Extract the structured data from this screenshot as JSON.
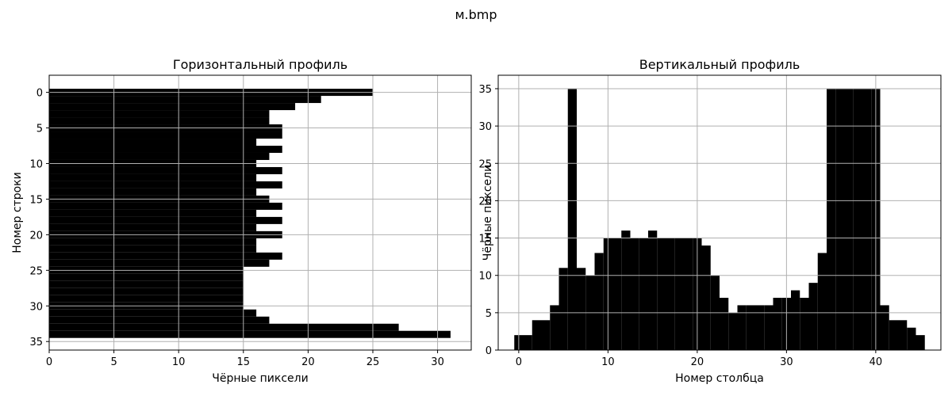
{
  "figure": {
    "suptitle": "м.bmp"
  },
  "chart_data": [
    {
      "type": "bar",
      "orientation": "horizontal",
      "title": "Горизонтальный профиль",
      "xlabel": "Чёрные пиксели",
      "ylabel": "Номер строки",
      "x_ticks": [
        0,
        5,
        10,
        15,
        20,
        25,
        30
      ],
      "y_ticks": [
        0,
        5,
        10,
        15,
        20,
        25,
        30,
        35
      ],
      "xlim": [
        0,
        32.6
      ],
      "ylim_inverted": [
        36.2,
        -2.4
      ],
      "grid": true,
      "bar_color": "#000000",
      "categories": [
        0,
        1,
        2,
        3,
        4,
        5,
        6,
        7,
        8,
        9,
        10,
        11,
        12,
        13,
        14,
        15,
        16,
        17,
        18,
        19,
        20,
        21,
        22,
        23,
        24,
        25,
        26,
        27,
        28,
        29,
        30,
        31,
        32,
        33,
        34
      ],
      "values": [
        25,
        21,
        19,
        17,
        17,
        18,
        18,
        16,
        18,
        17,
        16,
        18,
        16,
        18,
        16,
        17,
        18,
        16,
        18,
        16,
        18,
        16,
        16,
        18,
        17,
        15,
        15,
        15,
        15,
        15,
        15,
        16,
        17,
        27,
        31
      ]
    },
    {
      "type": "bar",
      "orientation": "vertical",
      "title": "Вертикальный профиль",
      "xlabel": "Номер столбца",
      "ylabel": "Чёрные пиксели",
      "x_ticks": [
        0,
        10,
        20,
        30,
        40
      ],
      "y_ticks": [
        0,
        5,
        10,
        15,
        20,
        25,
        30,
        35
      ],
      "xlim": [
        -2.3,
        47.3
      ],
      "ylim": [
        0,
        36.8
      ],
      "grid": true,
      "bar_color": "#000000",
      "categories": [
        0,
        1,
        2,
        3,
        4,
        5,
        6,
        7,
        8,
        9,
        10,
        11,
        12,
        13,
        14,
        15,
        16,
        17,
        18,
        19,
        20,
        21,
        22,
        23,
        24,
        25,
        26,
        27,
        28,
        29,
        30,
        31,
        32,
        33,
        34,
        35,
        36,
        37,
        38,
        39,
        40,
        41,
        42,
        43,
        44,
        45
      ],
      "values": [
        2,
        2,
        4,
        4,
        6,
        11,
        35,
        11,
        10,
        13,
        15,
        15,
        16,
        15,
        15,
        16,
        15,
        15,
        15,
        15,
        15,
        14,
        10,
        7,
        5,
        6,
        6,
        6,
        6,
        7,
        7,
        8,
        7,
        9,
        13,
        35,
        35,
        35,
        35,
        35,
        35,
        6,
        4,
        4,
        3,
        2
      ]
    }
  ]
}
